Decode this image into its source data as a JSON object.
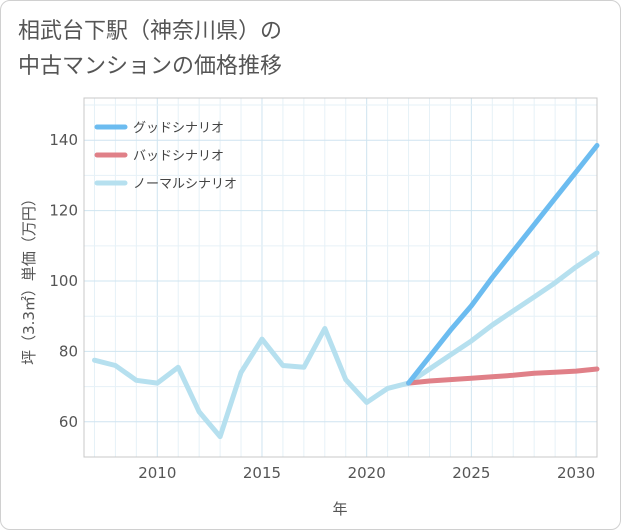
{
  "chart_data": {
    "type": "line",
    "title_lines": [
      "相武台下駅（神奈川県）の",
      "中古マンションの価格推移"
    ],
    "xlabel": "年",
    "ylabel": "坪（3.3㎡）単価（万円）",
    "xlim": [
      2006.5,
      2031
    ],
    "ylim": [
      50,
      152
    ],
    "x_ticks": [
      2010,
      2015,
      2020,
      2025,
      2030
    ],
    "y_ticks": [
      60,
      80,
      100,
      120,
      140
    ],
    "x_tick_labels": [
      "2010",
      "2015",
      "2020",
      "2025",
      "2030"
    ],
    "y_tick_labels": [
      "60",
      "80",
      "100",
      "120",
      "140"
    ],
    "legend_position": "top-left",
    "series": [
      {
        "name": "グッドシナリオ",
        "color": "#6cbcf0",
        "x": [
          2022,
          2023,
          2024,
          2025,
          2026,
          2027,
          2028,
          2029,
          2030,
          2031
        ],
        "values": [
          71,
          78.5,
          86,
          93,
          101,
          108.5,
          116,
          123.5,
          131,
          138.5
        ]
      },
      {
        "name": "バッドシナリオ",
        "color": "#e08088",
        "x": [
          2022,
          2023,
          2024,
          2025,
          2026,
          2027,
          2028,
          2029,
          2030,
          2031
        ],
        "values": [
          71,
          71.6,
          72,
          72.4,
          72.8,
          73.2,
          73.8,
          74.1,
          74.4,
          75
        ]
      },
      {
        "name": "ノーマルシナリオ",
        "color": "#b6e0ef",
        "x": [
          2007,
          2008,
          2009,
          2010,
          2011,
          2012,
          2013,
          2014,
          2015,
          2016,
          2017,
          2018,
          2019,
          2020,
          2021,
          2022,
          2023,
          2024,
          2025,
          2026,
          2027,
          2028,
          2029,
          2030,
          2031
        ],
        "values": [
          77.5,
          76,
          71.8,
          71,
          75.5,
          62.8,
          55.8,
          74,
          83.5,
          76,
          75.5,
          86.5,
          72,
          65.5,
          69.5,
          71,
          75,
          79,
          83,
          87.5,
          91.5,
          95.5,
          99.5,
          104,
          108
        ]
      }
    ]
  }
}
